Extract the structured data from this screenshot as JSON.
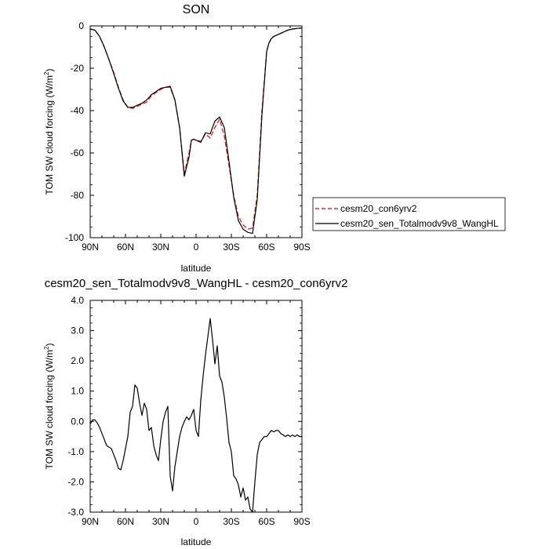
{
  "chart_data": [
    {
      "type": "line",
      "title": "SON",
      "xlabel": "latitude",
      "ylabel": "TOM SW cloud forcing (W/m²)",
      "ylabel_main": "TOM SW cloud forcing (W/m",
      "ylabel_sup": "2",
      "ylabel_tail": ")",
      "xlim": [
        90,
        -90
      ],
      "ylim": [
        -100,
        0
      ],
      "x_ticks": [
        {
          "value": 90,
          "label": "90N"
        },
        {
          "value": 60,
          "label": "60N"
        },
        {
          "value": 30,
          "label": "30N"
        },
        {
          "value": 0,
          "label": "0"
        },
        {
          "value": -30,
          "label": "30S"
        },
        {
          "value": -60,
          "label": "60S"
        },
        {
          "value": -90,
          "label": "90S"
        }
      ],
      "y_ticks": [
        {
          "value": 0,
          "label": "0"
        },
        {
          "value": -20,
          "label": "-20"
        },
        {
          "value": -40,
          "label": "-40"
        },
        {
          "value": -60,
          "label": "-60"
        },
        {
          "value": -80,
          "label": "-80"
        },
        {
          "value": -100,
          "label": "-100"
        }
      ],
      "legend": {
        "placement": "right"
      },
      "series": [
        {
          "name": "cesm20_con6yrv2",
          "color": "#e0282a",
          "dash": true,
          "x": [
            90,
            86,
            82,
            78,
            74,
            70,
            66,
            62,
            58,
            54,
            50,
            46,
            42,
            38,
            34,
            30,
            26,
            22,
            18,
            14,
            10,
            6,
            4,
            2,
            0,
            -4,
            -8,
            -12,
            -16,
            -20,
            -24,
            -28,
            -32,
            -36,
            -40,
            -44,
            -48,
            -52,
            -56,
            -60,
            -62,
            -64,
            -66,
            -70,
            -74,
            -78,
            -82,
            -86,
            -90
          ],
          "y": [
            -1.5,
            -2,
            -5,
            -10,
            -16,
            -22,
            -29,
            -35,
            -38.5,
            -39,
            -38,
            -37,
            -36,
            -33,
            -31.5,
            -30,
            -29,
            -29,
            -35,
            -48,
            -70,
            -60,
            -54,
            -53.5,
            -54,
            -54.5,
            -51,
            -53,
            -48,
            -44,
            -52,
            -66,
            -80,
            -90,
            -94,
            -96,
            -95.5,
            -80,
            -40,
            -12,
            -8,
            -6,
            -5,
            -4,
            -3,
            -2,
            -1.5,
            -1.2,
            -1
          ]
        },
        {
          "name": "cesm20_sen_Totalmodv9v8_WangHL",
          "color": "#000000",
          "dash": false,
          "x": [
            90,
            86,
            82,
            78,
            74,
            70,
            66,
            62,
            58,
            54,
            50,
            46,
            42,
            38,
            34,
            30,
            26,
            22,
            18,
            14,
            10,
            6,
            4,
            2,
            0,
            -4,
            -8,
            -12,
            -16,
            -20,
            -24,
            -28,
            -32,
            -36,
            -40,
            -44,
            -48,
            -52,
            -56,
            -60,
            -62,
            -64,
            -66,
            -70,
            -74,
            -78,
            -82,
            -86,
            -90
          ],
          "y": [
            -1.5,
            -2,
            -5,
            -10,
            -16,
            -22.5,
            -29.5,
            -35.5,
            -38.5,
            -38.5,
            -37.5,
            -36.5,
            -35,
            -32.5,
            -31,
            -29.5,
            -29,
            -28.5,
            -35,
            -48,
            -71,
            -62,
            -54,
            -53.5,
            -54,
            -55,
            -50.5,
            -51,
            -45,
            -43,
            -48,
            -64,
            -81,
            -92,
            -96,
            -97.5,
            -98,
            -82,
            -42,
            -12,
            -8,
            -6,
            -5,
            -4,
            -3,
            -2,
            -1.5,
            -1.2,
            -1
          ]
        }
      ]
    },
    {
      "type": "line",
      "title": "cesm20_sen_Totalmodv9v8_WangHL - cesm20_con6yrv2",
      "xlabel": "latitude",
      "ylabel": "TOM SW cloud forcing (W/m²)",
      "ylabel_main": "TOM SW cloud forcing (W/m",
      "ylabel_sup": "2",
      "ylabel_tail": ")",
      "xlim": [
        90,
        -90
      ],
      "ylim": [
        -3,
        4
      ],
      "x_ticks": [
        {
          "value": 90,
          "label": "90N"
        },
        {
          "value": 60,
          "label": "60N"
        },
        {
          "value": 30,
          "label": "30N"
        },
        {
          "value": 0,
          "label": "0"
        },
        {
          "value": -30,
          "label": "30S"
        },
        {
          "value": -60,
          "label": "60S"
        },
        {
          "value": -90,
          "label": "90S"
        }
      ],
      "y_ticks": [
        {
          "value": 4,
          "label": "4.0"
        },
        {
          "value": 3,
          "label": "3.0"
        },
        {
          "value": 2,
          "label": "2.0"
        },
        {
          "value": 1,
          "label": "1.0"
        },
        {
          "value": 0,
          "label": "0.0"
        },
        {
          "value": -1,
          "label": "-1.0"
        },
        {
          "value": -2,
          "label": "-2.0"
        },
        {
          "value": -3,
          "label": "-3.0"
        }
      ],
      "series": [
        {
          "color": "#000000",
          "x": [
            90,
            88,
            86,
            84,
            82,
            80,
            78,
            76,
            74,
            72,
            70,
            68,
            66,
            64,
            62,
            60,
            58,
            56,
            54,
            52,
            50,
            48,
            46,
            44,
            42,
            40,
            38,
            36,
            34,
            32,
            30,
            28,
            26,
            24,
            22,
            20,
            18,
            16,
            14,
            12,
            10,
            8,
            6,
            4,
            2,
            0,
            -2,
            -4,
            -6,
            -8,
            -10,
            -12,
            -14,
            -16,
            -18,
            -20,
            -22,
            -24,
            -26,
            -28,
            -30,
            -32,
            -34,
            -36,
            -38,
            -40,
            -42,
            -44,
            -46,
            -48,
            -50,
            -52,
            -54,
            -56,
            -58,
            -60,
            -62,
            -64,
            -66,
            -68,
            -70,
            -72,
            -74,
            -76,
            -78,
            -80,
            -82,
            -84,
            -86,
            -88,
            -90
          ],
          "y": [
            -0.1,
            0.05,
            0.05,
            -0.05,
            -0.2,
            -0.4,
            -0.6,
            -0.8,
            -0.85,
            -0.9,
            -1.1,
            -1.3,
            -1.55,
            -1.6,
            -1.3,
            -0.9,
            -0.5,
            0.3,
            0.5,
            1.2,
            1.1,
            0.6,
            0.2,
            0.6,
            0.4,
            -0.3,
            -0.2,
            -0.8,
            -1.1,
            -1.3,
            -0.6,
            0.0,
            0.3,
            0.5,
            -1.8,
            -2.3,
            -1.5,
            -1.0,
            -0.5,
            -0.2,
            0.0,
            0.15,
            0.05,
            0.2,
            0.4,
            -0.3,
            -0.5,
            0.7,
            1.5,
            2.2,
            2.8,
            3.4,
            2.7,
            1.9,
            2.5,
            1.5,
            1.3,
            0.8,
            0.1,
            -0.7,
            -1.0,
            -1.8,
            -1.9,
            -2.1,
            -2.5,
            -2.2,
            -2.6,
            -2.5,
            -2.9,
            -3.0,
            -2.0,
            -1.1,
            -0.7,
            -0.6,
            -0.5,
            -0.5,
            -0.4,
            -0.3,
            -0.35,
            -0.3,
            -0.3,
            -0.4,
            -0.45,
            -0.5,
            -0.45,
            -0.5,
            -0.45,
            -0.5,
            -0.45,
            -0.5,
            -0.5
          ]
        }
      ]
    }
  ]
}
